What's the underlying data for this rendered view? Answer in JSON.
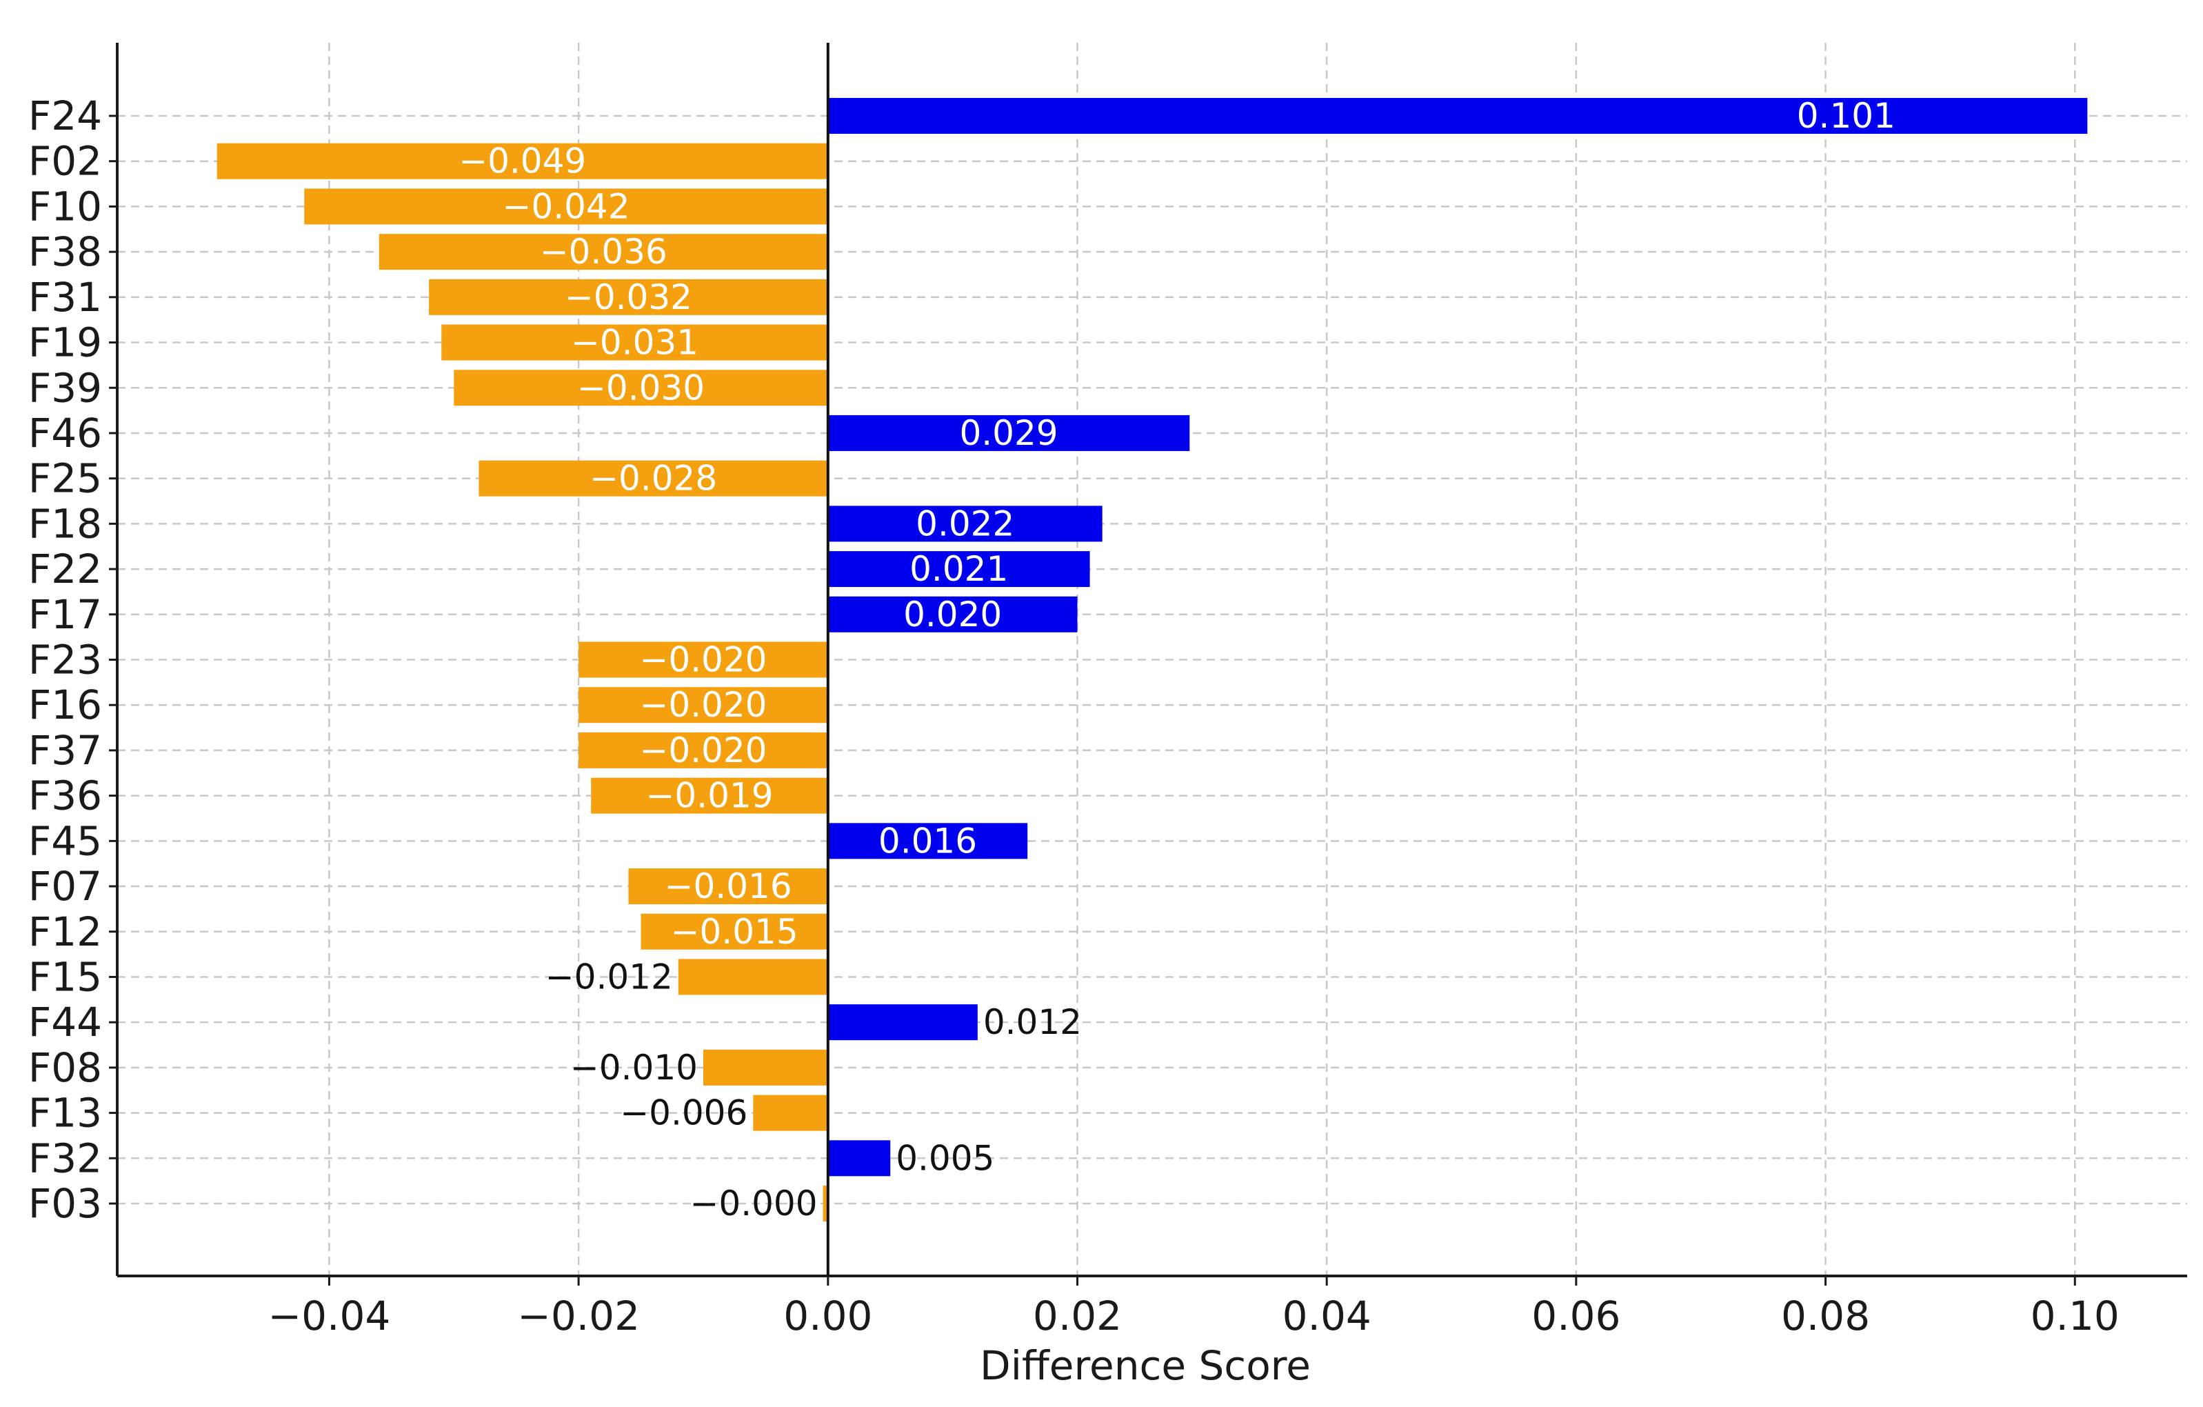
{
  "chart_data": {
    "type": "bar",
    "orientation": "horizontal",
    "xlabel": "Difference Score",
    "ylabel": "",
    "xlim": [
      -0.057,
      0.109
    ],
    "x_ticks": [
      -0.04,
      -0.02,
      0.0,
      0.02,
      0.04,
      0.06,
      0.08,
      0.1
    ],
    "x_tick_labels": [
      "−0.04",
      "−0.02",
      "0.00",
      "0.02",
      "0.04",
      "0.06",
      "0.08",
      "0.10"
    ],
    "grid": true,
    "colors": {
      "positive": "#0000ee",
      "negative": "#f5a10f"
    },
    "categories": [
      "F24",
      "F02",
      "F10",
      "F38",
      "F31",
      "F19",
      "F39",
      "F46",
      "F25",
      "F18",
      "F22",
      "F17",
      "F23",
      "F16",
      "F37",
      "F36",
      "F45",
      "F07",
      "F12",
      "F15",
      "F44",
      "F08",
      "F13",
      "F32",
      "F03"
    ],
    "values": [
      0.101,
      -0.049,
      -0.042,
      -0.036,
      -0.032,
      -0.031,
      -0.03,
      0.029,
      -0.028,
      0.022,
      0.021,
      0.02,
      -0.02,
      -0.02,
      -0.02,
      -0.019,
      0.016,
      -0.016,
      -0.015,
      -0.012,
      0.012,
      -0.01,
      -0.006,
      0.005,
      -0.0004
    ],
    "value_labels": [
      "0.101",
      "−0.049",
      "−0.042",
      "−0.036",
      "−0.032",
      "−0.031",
      "−0.030",
      "0.029",
      "−0.028",
      "0.022",
      "0.021",
      "0.020",
      "−0.020",
      "−0.020",
      "−0.020",
      "−0.019",
      "0.016",
      "−0.016",
      "−0.015",
      "−0.012",
      "0.012",
      "−0.010",
      "−0.006",
      "0.005",
      "−0.000"
    ]
  }
}
